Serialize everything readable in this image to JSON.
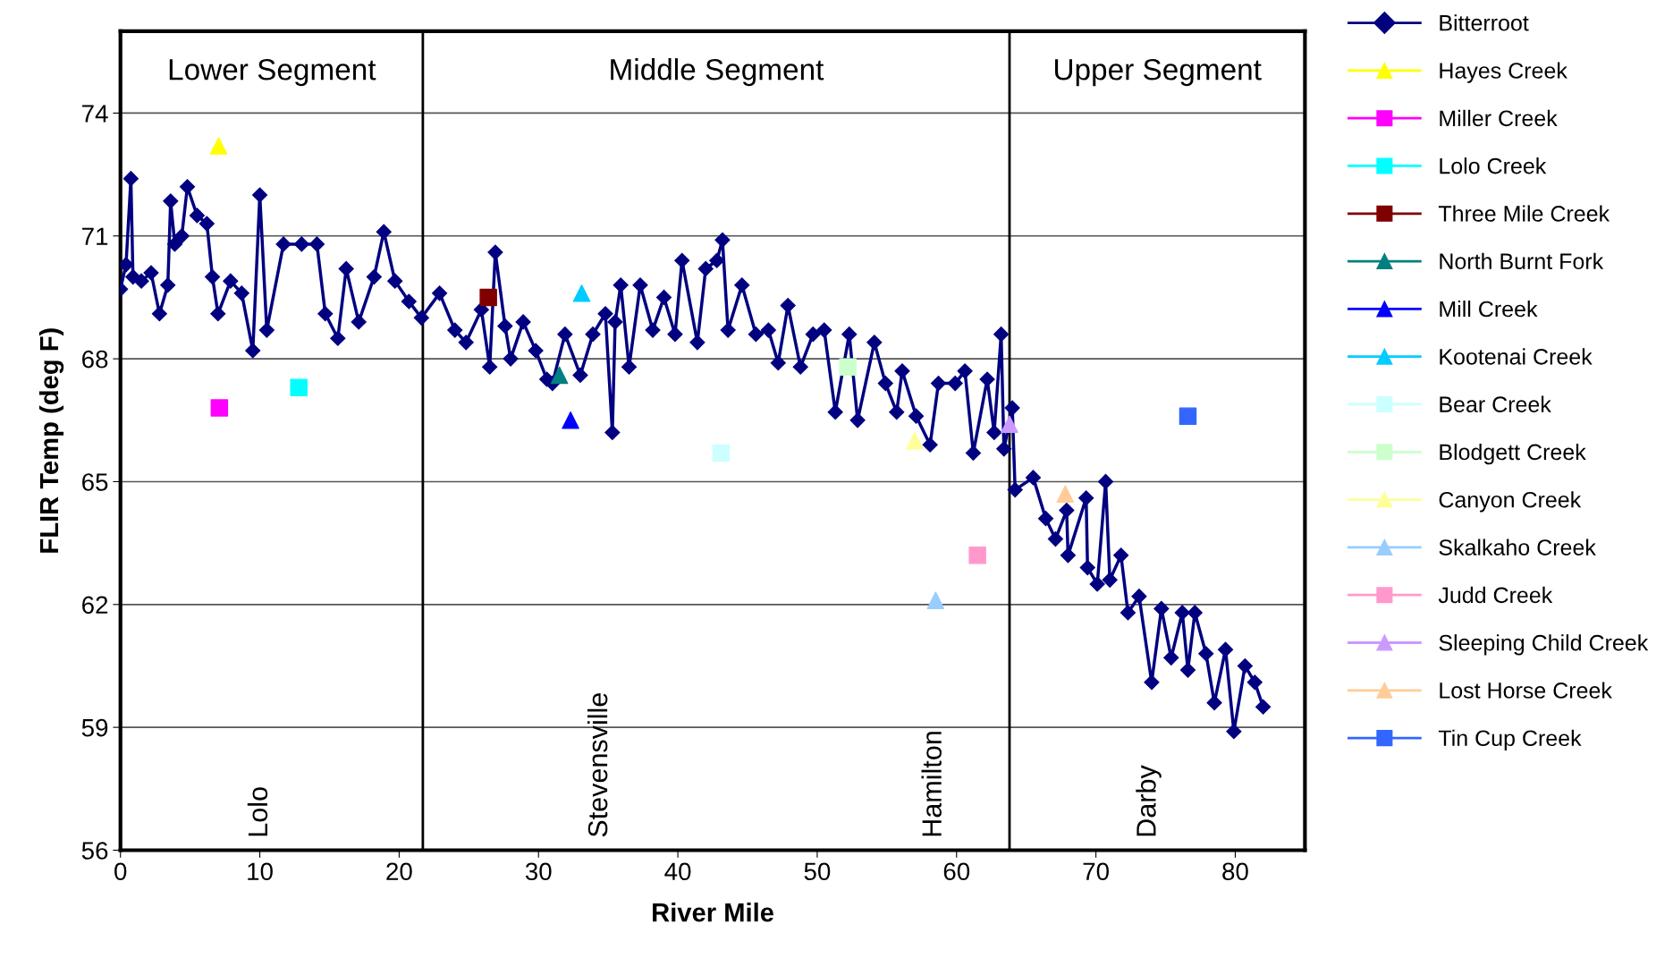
{
  "chart_data": {
    "type": "line",
    "xlabel": "River Mile",
    "ylabel": "FLIR Temp (deg F)",
    "xlim": [
      0,
      85
    ],
    "xticks": [
      0,
      10,
      20,
      30,
      40,
      50,
      60,
      70,
      80
    ],
    "ylim": [
      56,
      76
    ],
    "yticks": [
      56,
      59,
      62,
      65,
      68,
      71,
      74
    ],
    "grid": "y",
    "legend": "right",
    "ref_lines": [
      {
        "axis": "x",
        "value": 21.7,
        "color": "#000000"
      },
      {
        "axis": "x",
        "value": 63.8,
        "color": "#000000"
      }
    ],
    "annotations": [
      "Lower Segment",
      "Middle Segment",
      "Upper Segment",
      "Lolo",
      "Stevensville",
      "Hamilton",
      "Darby"
    ],
    "series": [
      {
        "name": "Bitterroot",
        "color": "#000080",
        "marker": "diamond",
        "line_style": "solid",
        "x": [
          0.0,
          0.4,
          0.75,
          0.9,
          1.5,
          2.2,
          2.8,
          3.4,
          3.6,
          3.9,
          4.4,
          4.8,
          5.5,
          6.2,
          6.6,
          7.0,
          7.9,
          8.7,
          9.5,
          10.0,
          10.5,
          11.7,
          13.0,
          14.1,
          14.7,
          15.6,
          16.2,
          17.1,
          18.2,
          18.9,
          19.7,
          20.7,
          21.6,
          22.9,
          24.0,
          24.8,
          25.9,
          26.5,
          26.9,
          27.6,
          28.0,
          28.9,
          29.8,
          30.6,
          31.0,
          31.9,
          33.0,
          33.9,
          34.8,
          35.3,
          35.5,
          35.9,
          36.5,
          37.3,
          38.2,
          39.0,
          39.8,
          40.3,
          41.4,
          42.0,
          42.8,
          43.2,
          43.6,
          44.6,
          45.6,
          46.5,
          47.2,
          47.9,
          48.8,
          49.7,
          50.5,
          51.3,
          52.3,
          52.9,
          54.1,
          54.9,
          55.7,
          56.1,
          57.1,
          58.1,
          58.7,
          59.9,
          60.6,
          61.2,
          62.2,
          62.7,
          63.2,
          63.4,
          64.0,
          64.2,
          65.5,
          66.4,
          67.1,
          67.9,
          68.0,
          69.3,
          69.4,
          70.1,
          70.7,
          71.0,
          71.8,
          72.3,
          73.1,
          74.0,
          74.7,
          75.4,
          76.2,
          76.6,
          77.1,
          77.9,
          78.5,
          79.3,
          79.9,
          80.7,
          81.4,
          82.0
        ],
        "values": [
          69.7,
          70.3,
          72.4,
          70.0,
          69.9,
          70.1,
          69.1,
          69.8,
          71.85,
          70.8,
          71.0,
          72.2,
          71.5,
          71.3,
          70.0,
          69.1,
          69.9,
          69.6,
          68.2,
          72.0,
          68.7,
          70.8,
          70.8,
          70.8,
          69.1,
          68.5,
          70.2,
          68.9,
          70.0,
          71.1,
          69.9,
          69.4,
          69.0,
          69.6,
          68.7,
          68.4,
          69.2,
          67.8,
          70.6,
          68.8,
          68.0,
          68.9,
          68.2,
          67.5,
          67.4,
          68.6,
          67.6,
          68.6,
          69.1,
          66.2,
          68.9,
          69.8,
          67.8,
          69.8,
          68.7,
          69.5,
          68.6,
          70.4,
          68.4,
          70.2,
          70.4,
          70.9,
          68.7,
          69.8,
          68.6,
          68.7,
          67.9,
          69.3,
          67.8,
          68.6,
          68.7,
          66.7,
          68.6,
          66.5,
          68.4,
          67.4,
          66.7,
          67.7,
          66.6,
          65.9,
          67.4,
          67.4,
          67.7,
          65.7,
          67.5,
          66.2,
          68.6,
          65.8,
          66.8,
          64.8,
          65.1,
          64.1,
          63.6,
          64.3,
          63.2,
          64.6,
          62.9,
          62.5,
          65.0,
          62.6,
          63.2,
          61.8,
          62.2,
          60.1,
          61.9,
          60.7,
          61.8,
          60.4,
          61.8,
          60.8,
          59.6,
          60.9,
          58.9,
          60.5,
          60.1,
          59.5
        ]
      },
      {
        "name": "Hayes Creek",
        "type": "scatter",
        "color": "#ffff00",
        "marker": "triangle",
        "x": [
          7.05
        ],
        "values": [
          73.2
        ]
      },
      {
        "name": "Miller Creek",
        "type": "scatter",
        "color": "#ff00ff",
        "marker": "square",
        "x": [
          7.1
        ],
        "values": [
          66.8
        ]
      },
      {
        "name": "Lolo Creek",
        "type": "scatter",
        "color": "#00ffff",
        "marker": "square",
        "x": [
          12.8
        ],
        "values": [
          67.3
        ]
      },
      {
        "name": "Three Mile Creek",
        "type": "scatter",
        "color": "#800000",
        "marker": "square",
        "x": [
          26.4
        ],
        "values": [
          69.5
        ]
      },
      {
        "name": "North Burnt Fork",
        "type": "scatter",
        "color": "#008080",
        "marker": "triangle",
        "x": [
          31.5
        ],
        "values": [
          67.6
        ]
      },
      {
        "name": "Mill Creek",
        "type": "scatter",
        "color": "#0000ff",
        "marker": "triangle",
        "x": [
          32.3
        ],
        "values": [
          66.5
        ]
      },
      {
        "name": "Kootenai Creek",
        "type": "scatter",
        "color": "#00ccff",
        "marker": "triangle",
        "x": [
          33.1
        ],
        "values": [
          69.6
        ]
      },
      {
        "name": "Bear Creek",
        "type": "scatter",
        "color": "#ccffff",
        "marker": "square",
        "x": [
          43.1
        ],
        "values": [
          65.7
        ]
      },
      {
        "name": "Blodgett Creek",
        "type": "scatter",
        "color": "#ccffcc",
        "marker": "square",
        "x": [
          52.2
        ],
        "values": [
          67.8
        ]
      },
      {
        "name": "Canyon Creek",
        "type": "scatter",
        "color": "#ffff99",
        "marker": "triangle",
        "x": [
          57.0
        ],
        "values": [
          66.0
        ]
      },
      {
        "name": "Skalkaho Creek",
        "type": "scatter",
        "color": "#99ccff",
        "marker": "triangle",
        "x": [
          58.5
        ],
        "values": [
          62.1
        ]
      },
      {
        "name": "Judd Creek",
        "type": "scatter",
        "color": "#ff99cc",
        "marker": "square",
        "x": [
          61.5
        ],
        "values": [
          63.2
        ]
      },
      {
        "name": "Sleeping Child Creek",
        "type": "scatter",
        "color": "#cc99ff",
        "marker": "triangle",
        "x": [
          63.8
        ],
        "values": [
          66.4
        ]
      },
      {
        "name": "Lost Horse Creek",
        "type": "scatter",
        "color": "#ffcc99",
        "marker": "triangle",
        "x": [
          67.8
        ],
        "values": [
          64.7
        ]
      },
      {
        "name": "Tin Cup Creek",
        "type": "scatter",
        "color": "#3366ff",
        "marker": "square",
        "x": [
          76.6
        ],
        "values": [
          66.6
        ]
      }
    ]
  }
}
